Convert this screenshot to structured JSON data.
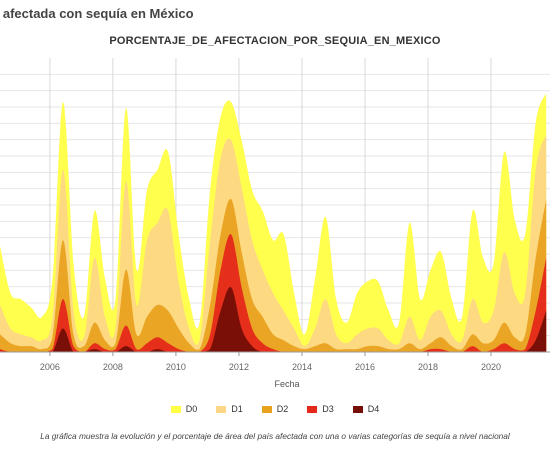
{
  "page": {
    "heading": "a afectada con sequía en México",
    "caption": "La gráfica muestra la evolución y el porcentaje de área del país afectada con una o varias categorías de sequía a nivel nacional"
  },
  "chart_data": {
    "type": "area",
    "title": "PORCENTAJE_DE_AFECTACION_POR_SEQUIA_EN_MEXICO",
    "xlabel": "Fecha",
    "ylabel": "",
    "x_ticks": [
      "2006",
      "2008",
      "2010",
      "2012",
      "2014",
      "2016",
      "2018",
      "2020"
    ],
    "ylim": [
      0,
      100
    ],
    "xlim": [
      "2004-06-01",
      "2021-11-15"
    ],
    "grid": true,
    "legend_position": "bottom",
    "x": [
      "2004-06",
      "2004-10",
      "2005-02",
      "2005-06",
      "2005-10",
      "2006-02",
      "2006-06",
      "2006-10",
      "2007-02",
      "2007-06",
      "2007-10",
      "2008-02",
      "2008-06",
      "2008-10",
      "2009-02",
      "2009-06",
      "2009-10",
      "2010-02",
      "2010-06",
      "2010-10",
      "2011-02",
      "2011-06",
      "2011-10",
      "2012-02",
      "2012-06",
      "2012-10",
      "2013-02",
      "2013-06",
      "2013-10",
      "2014-02",
      "2014-06",
      "2014-10",
      "2015-02",
      "2015-06",
      "2015-10",
      "2016-02",
      "2016-06",
      "2016-10",
      "2017-02",
      "2017-06",
      "2017-10",
      "2018-02",
      "2018-06",
      "2018-10",
      "2019-02",
      "2019-06",
      "2019-10",
      "2020-02",
      "2020-06",
      "2020-10",
      "2021-02",
      "2021-06",
      "2021-10"
    ],
    "series": [
      {
        "name": "D0",
        "color": "#ffff44",
        "values": [
          36,
          20,
          18,
          15,
          12,
          25,
          85,
          30,
          12,
          48,
          25,
          18,
          83,
          28,
          55,
          62,
          68,
          40,
          18,
          10,
          55,
          80,
          85,
          72,
          55,
          48,
          38,
          40,
          20,
          6,
          25,
          46,
          18,
          10,
          20,
          24,
          24,
          14,
          10,
          44,
          18,
          28,
          34,
          18,
          12,
          48,
          32,
          30,
          68,
          45,
          40,
          78,
          88
        ]
      },
      {
        "name": "D1",
        "color": "#fdd785",
        "values": [
          16,
          8,
          6,
          5,
          4,
          12,
          62,
          14,
          5,
          32,
          12,
          8,
          58,
          16,
          38,
          44,
          48,
          24,
          8,
          4,
          38,
          66,
          72,
          56,
          38,
          28,
          20,
          14,
          8,
          2,
          8,
          18,
          6,
          3,
          6,
          8,
          8,
          4,
          3,
          12,
          4,
          12,
          14,
          6,
          4,
          18,
          10,
          14,
          34,
          20,
          20,
          62,
          74
        ]
      },
      {
        "name": "D2",
        "color": "#e9a21f",
        "values": [
          6,
          3,
          2,
          2,
          1,
          5,
          38,
          6,
          2,
          10,
          4,
          3,
          28,
          6,
          12,
          16,
          14,
          8,
          3,
          1,
          16,
          40,
          52,
          34,
          18,
          12,
          6,
          4,
          2,
          1,
          2,
          3,
          1,
          1,
          1,
          2,
          2,
          1,
          1,
          3,
          1,
          3,
          5,
          2,
          1,
          6,
          3,
          4,
          10,
          5,
          6,
          32,
          52
        ]
      },
      {
        "name": "D3",
        "color": "#e5281b",
        "values": [
          1,
          0,
          0,
          0,
          0,
          1,
          18,
          2,
          0,
          3,
          1,
          1,
          9,
          1,
          3,
          5,
          3,
          1,
          0,
          0,
          6,
          28,
          40,
          22,
          8,
          3,
          1,
          0,
          0,
          0,
          0,
          0,
          0,
          0,
          0,
          0,
          0,
          0,
          0,
          0,
          0,
          1,
          1,
          0,
          0,
          2,
          0,
          1,
          3,
          1,
          1,
          14,
          32
        ]
      },
      {
        "name": "D4",
        "color": "#740e06",
        "values": [
          0,
          0,
          0,
          0,
          0,
          0,
          8,
          0,
          0,
          1,
          0,
          0,
          2,
          0,
          0,
          1,
          0,
          0,
          0,
          0,
          1,
          14,
          22,
          8,
          2,
          0,
          0,
          0,
          0,
          0,
          0,
          0,
          0,
          0,
          0,
          0,
          0,
          0,
          0,
          0,
          0,
          0,
          0,
          0,
          0,
          0,
          0,
          0,
          0,
          0,
          0,
          4,
          14
        ]
      }
    ]
  }
}
